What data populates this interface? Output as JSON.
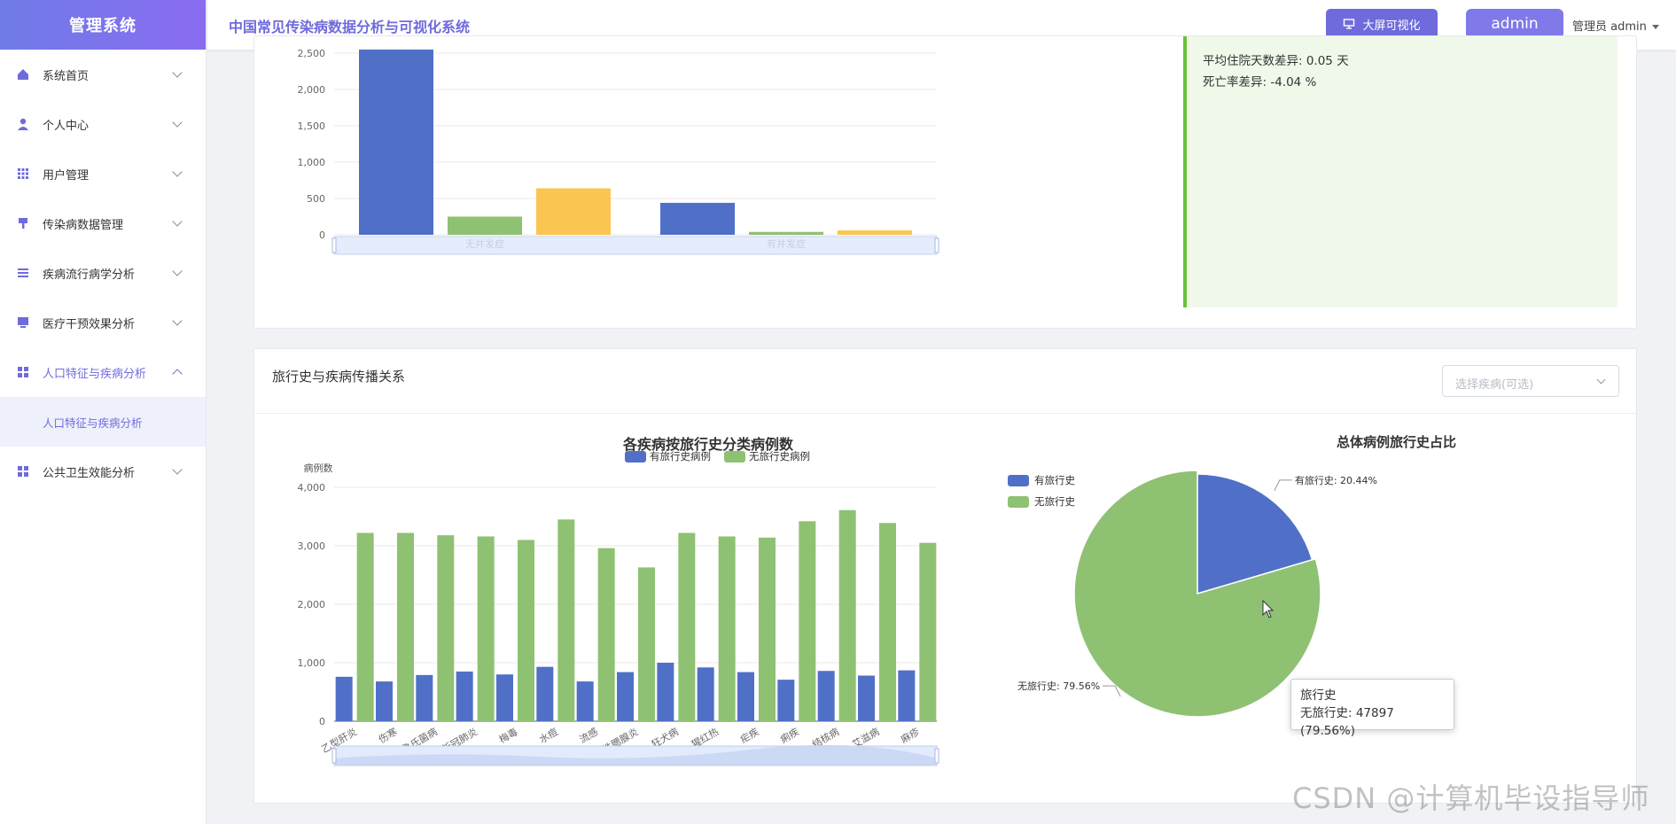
{
  "app": {
    "logo": "管理系统",
    "title": "中国常见传染病数据分析与可视化系统"
  },
  "header": {
    "bigscreen_label": "大屏可视化",
    "admin_label": "admin",
    "user_text": "管理员 admin"
  },
  "sidebar": {
    "items": [
      {
        "label": "系统首页",
        "icon": "home-icon"
      },
      {
        "label": "个人中心",
        "icon": "user-icon"
      },
      {
        "label": "用户管理",
        "icon": "grid-icon"
      },
      {
        "label": "传染病数据管理",
        "icon": "brush-icon"
      },
      {
        "label": "疾病流行病学分析",
        "icon": "list-icon"
      },
      {
        "label": "医疗干预效果分析",
        "icon": "monitor-icon"
      },
      {
        "label": "人口特征与疾病分析",
        "icon": "apps-icon"
      },
      {
        "label": "公共卫生效能分析",
        "icon": "apps-icon"
      }
    ],
    "open_submenu": "人口特征与疾病分析"
  },
  "top_card": {
    "info_lines": [
      "平均住院天数差异: 0.05 天",
      "死亡率差异: -4.04 %"
    ]
  },
  "bottom_card": {
    "title": "旅行史与疾病传播关系",
    "select_placeholder": "选择疾病(可选)"
  },
  "chart_data": [
    {
      "type": "bar",
      "categories": [
        "无并发症",
        "有并发症"
      ],
      "ylim": [
        0,
        2500
      ],
      "yticks": [
        "0",
        "500",
        "1,000",
        "1,500",
        "2,000",
        "2,500"
      ],
      "series": [
        {
          "color": "#5070c8",
          "values": [
            2550,
            440
          ]
        },
        {
          "color": "#8fc172",
          "values": [
            250,
            40
          ]
        },
        {
          "color": "#fbc552",
          "values": [
            640,
            60
          ]
        }
      ]
    },
    {
      "type": "bar",
      "title": "各疾病按旅行史分类病例数",
      "ylabel": "病例数",
      "ylim": [
        0,
        4000
      ],
      "yticks": [
        "0",
        "1,000",
        "2,000",
        "3,000",
        "4,000"
      ],
      "categories": [
        "乙型肝炎",
        "伤寒",
        "布鲁氏菌病",
        "新冠肺炎",
        "梅毒",
        "水痘",
        "流感",
        "流行性腮腺炎",
        "狂犬病",
        "猩红热",
        "疟疾",
        "痢疾",
        "结核病",
        "艾滋病",
        "麻疹"
      ],
      "series": [
        {
          "name": "有旅行史病例",
          "color": "#5070c8",
          "values": [
            760,
            680,
            790,
            850,
            800,
            930,
            680,
            840,
            1000,
            920,
            840,
            710,
            860,
            780,
            870
          ]
        },
        {
          "name": "无旅行史病例",
          "color": "#8fc172",
          "values": [
            3220,
            3220,
            3180,
            3160,
            3100,
            3450,
            2960,
            2630,
            3220,
            3160,
            3140,
            3420,
            3610,
            3390,
            3050
          ]
        }
      ]
    },
    {
      "type": "pie",
      "title": "总体病例旅行史占比",
      "legend": [
        "有旅行史",
        "无旅行史"
      ],
      "slices": [
        {
          "name": "有旅行史",
          "value": 20.44,
          "label": "有旅行史: 20.44%",
          "color": "#5070c8"
        },
        {
          "name": "无旅行史",
          "value": 79.56,
          "label": "无旅行史: 79.56%",
          "color": "#8fc172"
        }
      ],
      "tooltip": {
        "title": "旅行史",
        "text": "无旅行史: 47897 (79.56%)"
      }
    }
  ],
  "watermark": "CSDN @计算机毕设指导师"
}
